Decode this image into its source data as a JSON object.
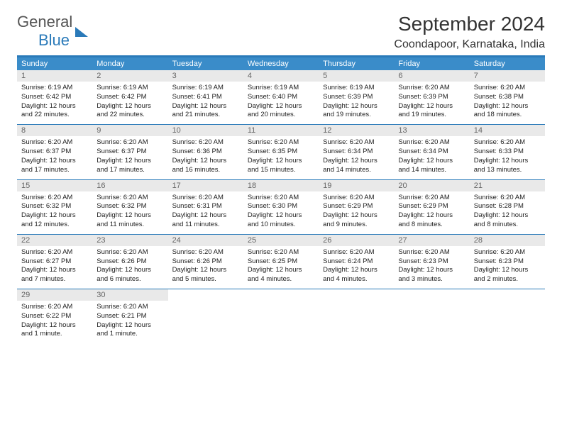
{
  "logo": {
    "word1": "General",
    "word2": "Blue"
  },
  "title": "September 2024",
  "location": "Coondapoor, Karnataka, India",
  "colors": {
    "brand": "#2a7ab9",
    "header_bg": "#3a8cc9",
    "header_fg": "#ffffff",
    "daynum_bg": "#e9e9e9",
    "daynum_fg": "#666666",
    "text": "#222222",
    "bg": "#ffffff"
  },
  "weekdays": [
    "Sunday",
    "Monday",
    "Tuesday",
    "Wednesday",
    "Thursday",
    "Friday",
    "Saturday"
  ],
  "weeks": [
    [
      {
        "n": "1",
        "sunrise": "6:19 AM",
        "sunset": "6:42 PM",
        "daylight": "12 hours and 22 minutes."
      },
      {
        "n": "2",
        "sunrise": "6:19 AM",
        "sunset": "6:42 PM",
        "daylight": "12 hours and 22 minutes."
      },
      {
        "n": "3",
        "sunrise": "6:19 AM",
        "sunset": "6:41 PM",
        "daylight": "12 hours and 21 minutes."
      },
      {
        "n": "4",
        "sunrise": "6:19 AM",
        "sunset": "6:40 PM",
        "daylight": "12 hours and 20 minutes."
      },
      {
        "n": "5",
        "sunrise": "6:19 AM",
        "sunset": "6:39 PM",
        "daylight": "12 hours and 19 minutes."
      },
      {
        "n": "6",
        "sunrise": "6:20 AM",
        "sunset": "6:39 PM",
        "daylight": "12 hours and 19 minutes."
      },
      {
        "n": "7",
        "sunrise": "6:20 AM",
        "sunset": "6:38 PM",
        "daylight": "12 hours and 18 minutes."
      }
    ],
    [
      {
        "n": "8",
        "sunrise": "6:20 AM",
        "sunset": "6:37 PM",
        "daylight": "12 hours and 17 minutes."
      },
      {
        "n": "9",
        "sunrise": "6:20 AM",
        "sunset": "6:37 PM",
        "daylight": "12 hours and 17 minutes."
      },
      {
        "n": "10",
        "sunrise": "6:20 AM",
        "sunset": "6:36 PM",
        "daylight": "12 hours and 16 minutes."
      },
      {
        "n": "11",
        "sunrise": "6:20 AM",
        "sunset": "6:35 PM",
        "daylight": "12 hours and 15 minutes."
      },
      {
        "n": "12",
        "sunrise": "6:20 AM",
        "sunset": "6:34 PM",
        "daylight": "12 hours and 14 minutes."
      },
      {
        "n": "13",
        "sunrise": "6:20 AM",
        "sunset": "6:34 PM",
        "daylight": "12 hours and 14 minutes."
      },
      {
        "n": "14",
        "sunrise": "6:20 AM",
        "sunset": "6:33 PM",
        "daylight": "12 hours and 13 minutes."
      }
    ],
    [
      {
        "n": "15",
        "sunrise": "6:20 AM",
        "sunset": "6:32 PM",
        "daylight": "12 hours and 12 minutes."
      },
      {
        "n": "16",
        "sunrise": "6:20 AM",
        "sunset": "6:32 PM",
        "daylight": "12 hours and 11 minutes."
      },
      {
        "n": "17",
        "sunrise": "6:20 AM",
        "sunset": "6:31 PM",
        "daylight": "12 hours and 11 minutes."
      },
      {
        "n": "18",
        "sunrise": "6:20 AM",
        "sunset": "6:30 PM",
        "daylight": "12 hours and 10 minutes."
      },
      {
        "n": "19",
        "sunrise": "6:20 AM",
        "sunset": "6:29 PM",
        "daylight": "12 hours and 9 minutes."
      },
      {
        "n": "20",
        "sunrise": "6:20 AM",
        "sunset": "6:29 PM",
        "daylight": "12 hours and 8 minutes."
      },
      {
        "n": "21",
        "sunrise": "6:20 AM",
        "sunset": "6:28 PM",
        "daylight": "12 hours and 8 minutes."
      }
    ],
    [
      {
        "n": "22",
        "sunrise": "6:20 AM",
        "sunset": "6:27 PM",
        "daylight": "12 hours and 7 minutes."
      },
      {
        "n": "23",
        "sunrise": "6:20 AM",
        "sunset": "6:26 PM",
        "daylight": "12 hours and 6 minutes."
      },
      {
        "n": "24",
        "sunrise": "6:20 AM",
        "sunset": "6:26 PM",
        "daylight": "12 hours and 5 minutes."
      },
      {
        "n": "25",
        "sunrise": "6:20 AM",
        "sunset": "6:25 PM",
        "daylight": "12 hours and 4 minutes."
      },
      {
        "n": "26",
        "sunrise": "6:20 AM",
        "sunset": "6:24 PM",
        "daylight": "12 hours and 4 minutes."
      },
      {
        "n": "27",
        "sunrise": "6:20 AM",
        "sunset": "6:23 PM",
        "daylight": "12 hours and 3 minutes."
      },
      {
        "n": "28",
        "sunrise": "6:20 AM",
        "sunset": "6:23 PM",
        "daylight": "12 hours and 2 minutes."
      }
    ],
    [
      {
        "n": "29",
        "sunrise": "6:20 AM",
        "sunset": "6:22 PM",
        "daylight": "12 hours and 1 minute."
      },
      {
        "n": "30",
        "sunrise": "6:20 AM",
        "sunset": "6:21 PM",
        "daylight": "12 hours and 1 minute."
      },
      null,
      null,
      null,
      null,
      null
    ]
  ],
  "labels": {
    "sunrise": "Sunrise: ",
    "sunset": "Sunset: ",
    "daylight": "Daylight: "
  }
}
